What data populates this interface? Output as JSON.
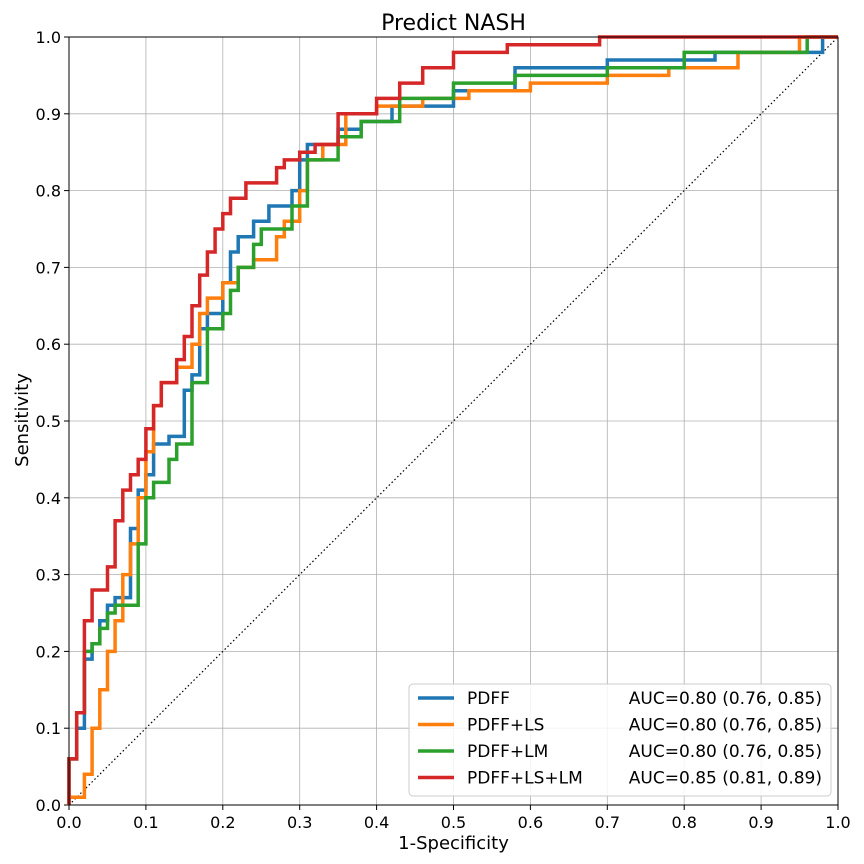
{
  "chart_data": {
    "type": "line",
    "title": "Predict NASH",
    "xlabel": "1-Specificity",
    "ylabel": "Sensitivity",
    "xlim": [
      0.0,
      1.0
    ],
    "ylim": [
      0.0,
      1.0
    ],
    "grid": true,
    "legend_position": "bottom-right",
    "xticks": [
      "0.0",
      "0.1",
      "0.2",
      "0.3",
      "0.4",
      "0.5",
      "0.6",
      "0.7",
      "0.8",
      "0.9",
      "1.0"
    ],
    "yticks": [
      "0.0",
      "0.1",
      "0.2",
      "0.3",
      "0.4",
      "0.5",
      "0.6",
      "0.7",
      "0.8",
      "0.9",
      "1.0"
    ],
    "reference_line": {
      "x": [
        0,
        1
      ],
      "y": [
        0,
        1
      ],
      "style": "dotted",
      "color": "#000000"
    },
    "series": [
      {
        "name": "PDFF",
        "auc_label": "AUC=0.80 (0.76, 0.85)",
        "color": "#1f77b4",
        "x": [
          0.0,
          0.0,
          0.01,
          0.01,
          0.02,
          0.02,
          0.03,
          0.03,
          0.04,
          0.04,
          0.05,
          0.05,
          0.06,
          0.06,
          0.08,
          0.08,
          0.09,
          0.09,
          0.1,
          0.1,
          0.11,
          0.11,
          0.13,
          0.13,
          0.15,
          0.15,
          0.16,
          0.16,
          0.17,
          0.17,
          0.18,
          0.18,
          0.2,
          0.2,
          0.21,
          0.21,
          0.22,
          0.22,
          0.24,
          0.24,
          0.26,
          0.26,
          0.29,
          0.29,
          0.3,
          0.3,
          0.31,
          0.31,
          0.35,
          0.35,
          0.38,
          0.38,
          0.42,
          0.42,
          0.5,
          0.5,
          0.58,
          0.58,
          0.7,
          0.7,
          0.84,
          0.84,
          0.98,
          0.98,
          1.0
        ],
        "y": [
          0.0,
          0.06,
          0.06,
          0.1,
          0.1,
          0.19,
          0.19,
          0.21,
          0.21,
          0.24,
          0.24,
          0.26,
          0.26,
          0.27,
          0.27,
          0.36,
          0.36,
          0.41,
          0.41,
          0.43,
          0.43,
          0.47,
          0.47,
          0.48,
          0.48,
          0.54,
          0.54,
          0.56,
          0.56,
          0.62,
          0.62,
          0.64,
          0.64,
          0.68,
          0.68,
          0.72,
          0.72,
          0.74,
          0.74,
          0.76,
          0.76,
          0.78,
          0.78,
          0.8,
          0.8,
          0.84,
          0.84,
          0.86,
          0.86,
          0.88,
          0.88,
          0.89,
          0.89,
          0.91,
          0.91,
          0.93,
          0.93,
          0.96,
          0.96,
          0.97,
          0.97,
          0.98,
          0.98,
          1.0,
          1.0
        ]
      },
      {
        "name": "PDFF+LS",
        "auc_label": "AUC=0.80 (0.76, 0.85)",
        "color": "#ff7f0e",
        "x": [
          0.0,
          0.0,
          0.02,
          0.02,
          0.03,
          0.03,
          0.04,
          0.04,
          0.05,
          0.05,
          0.06,
          0.06,
          0.07,
          0.07,
          0.08,
          0.08,
          0.09,
          0.09,
          0.1,
          0.1,
          0.11,
          0.11,
          0.12,
          0.12,
          0.14,
          0.14,
          0.16,
          0.16,
          0.17,
          0.17,
          0.18,
          0.18,
          0.2,
          0.2,
          0.22,
          0.22,
          0.24,
          0.24,
          0.27,
          0.27,
          0.28,
          0.28,
          0.3,
          0.3,
          0.31,
          0.31,
          0.33,
          0.33,
          0.36,
          0.36,
          0.4,
          0.4,
          0.46,
          0.46,
          0.52,
          0.52,
          0.6,
          0.6,
          0.7,
          0.7,
          0.78,
          0.78,
          0.87,
          0.87,
          0.95,
          0.95,
          1.0
        ],
        "y": [
          0.0,
          0.01,
          0.01,
          0.04,
          0.04,
          0.1,
          0.1,
          0.15,
          0.15,
          0.2,
          0.2,
          0.24,
          0.24,
          0.3,
          0.3,
          0.34,
          0.34,
          0.4,
          0.4,
          0.46,
          0.46,
          0.52,
          0.52,
          0.55,
          0.55,
          0.57,
          0.57,
          0.6,
          0.6,
          0.64,
          0.64,
          0.66,
          0.66,
          0.68,
          0.68,
          0.7,
          0.7,
          0.71,
          0.71,
          0.74,
          0.74,
          0.76,
          0.76,
          0.8,
          0.8,
          0.84,
          0.84,
          0.86,
          0.86,
          0.9,
          0.9,
          0.91,
          0.91,
          0.92,
          0.92,
          0.93,
          0.93,
          0.94,
          0.94,
          0.95,
          0.95,
          0.96,
          0.96,
          0.98,
          0.98,
          1.0,
          1.0
        ]
      },
      {
        "name": "PDFF+LM",
        "auc_label": "AUC=0.80 (0.76, 0.85)",
        "color": "#2ca02c",
        "x": [
          0.0,
          0.0,
          0.01,
          0.01,
          0.02,
          0.02,
          0.03,
          0.03,
          0.04,
          0.04,
          0.05,
          0.05,
          0.06,
          0.06,
          0.09,
          0.09,
          0.1,
          0.1,
          0.11,
          0.11,
          0.13,
          0.13,
          0.14,
          0.14,
          0.16,
          0.16,
          0.18,
          0.18,
          0.2,
          0.2,
          0.21,
          0.21,
          0.22,
          0.22,
          0.24,
          0.24,
          0.25,
          0.25,
          0.29,
          0.29,
          0.31,
          0.31,
          0.35,
          0.35,
          0.38,
          0.38,
          0.43,
          0.43,
          0.5,
          0.5,
          0.58,
          0.58,
          0.7,
          0.7,
          0.8,
          0.8,
          0.96,
          0.96,
          1.0
        ],
        "y": [
          0.0,
          0.06,
          0.06,
          0.12,
          0.12,
          0.2,
          0.2,
          0.21,
          0.21,
          0.23,
          0.23,
          0.25,
          0.25,
          0.26,
          0.26,
          0.34,
          0.34,
          0.4,
          0.4,
          0.42,
          0.42,
          0.45,
          0.45,
          0.47,
          0.47,
          0.55,
          0.55,
          0.62,
          0.62,
          0.64,
          0.64,
          0.67,
          0.67,
          0.7,
          0.7,
          0.73,
          0.73,
          0.75,
          0.75,
          0.78,
          0.78,
          0.84,
          0.84,
          0.87,
          0.87,
          0.89,
          0.89,
          0.92,
          0.92,
          0.94,
          0.94,
          0.95,
          0.95,
          0.96,
          0.96,
          0.98,
          0.98,
          1.0,
          1.0
        ]
      },
      {
        "name": "PDFF+LS+LM",
        "auc_label": "AUC=0.85 (0.81, 0.89)",
        "color": "#d62728",
        "x": [
          0.0,
          0.0,
          0.01,
          0.01,
          0.02,
          0.02,
          0.03,
          0.03,
          0.05,
          0.05,
          0.06,
          0.06,
          0.07,
          0.07,
          0.08,
          0.08,
          0.09,
          0.09,
          0.1,
          0.1,
          0.11,
          0.11,
          0.12,
          0.12,
          0.14,
          0.14,
          0.15,
          0.15,
          0.16,
          0.16,
          0.17,
          0.17,
          0.18,
          0.18,
          0.19,
          0.19,
          0.2,
          0.2,
          0.21,
          0.21,
          0.23,
          0.23,
          0.27,
          0.27,
          0.28,
          0.28,
          0.3,
          0.3,
          0.32,
          0.32,
          0.35,
          0.35,
          0.4,
          0.4,
          0.43,
          0.43,
          0.46,
          0.46,
          0.5,
          0.5,
          0.57,
          0.57,
          0.69,
          0.69,
          1.0
        ],
        "y": [
          0.0,
          0.06,
          0.06,
          0.12,
          0.12,
          0.24,
          0.24,
          0.28,
          0.28,
          0.31,
          0.31,
          0.37,
          0.37,
          0.41,
          0.41,
          0.43,
          0.43,
          0.45,
          0.45,
          0.49,
          0.49,
          0.52,
          0.52,
          0.55,
          0.55,
          0.58,
          0.58,
          0.61,
          0.61,
          0.65,
          0.65,
          0.69,
          0.69,
          0.72,
          0.72,
          0.75,
          0.75,
          0.77,
          0.77,
          0.79,
          0.79,
          0.81,
          0.81,
          0.83,
          0.83,
          0.84,
          0.84,
          0.85,
          0.85,
          0.86,
          0.86,
          0.9,
          0.9,
          0.92,
          0.92,
          0.94,
          0.94,
          0.96,
          0.96,
          0.98,
          0.98,
          0.99,
          0.99,
          1.0,
          1.0
        ]
      }
    ]
  }
}
